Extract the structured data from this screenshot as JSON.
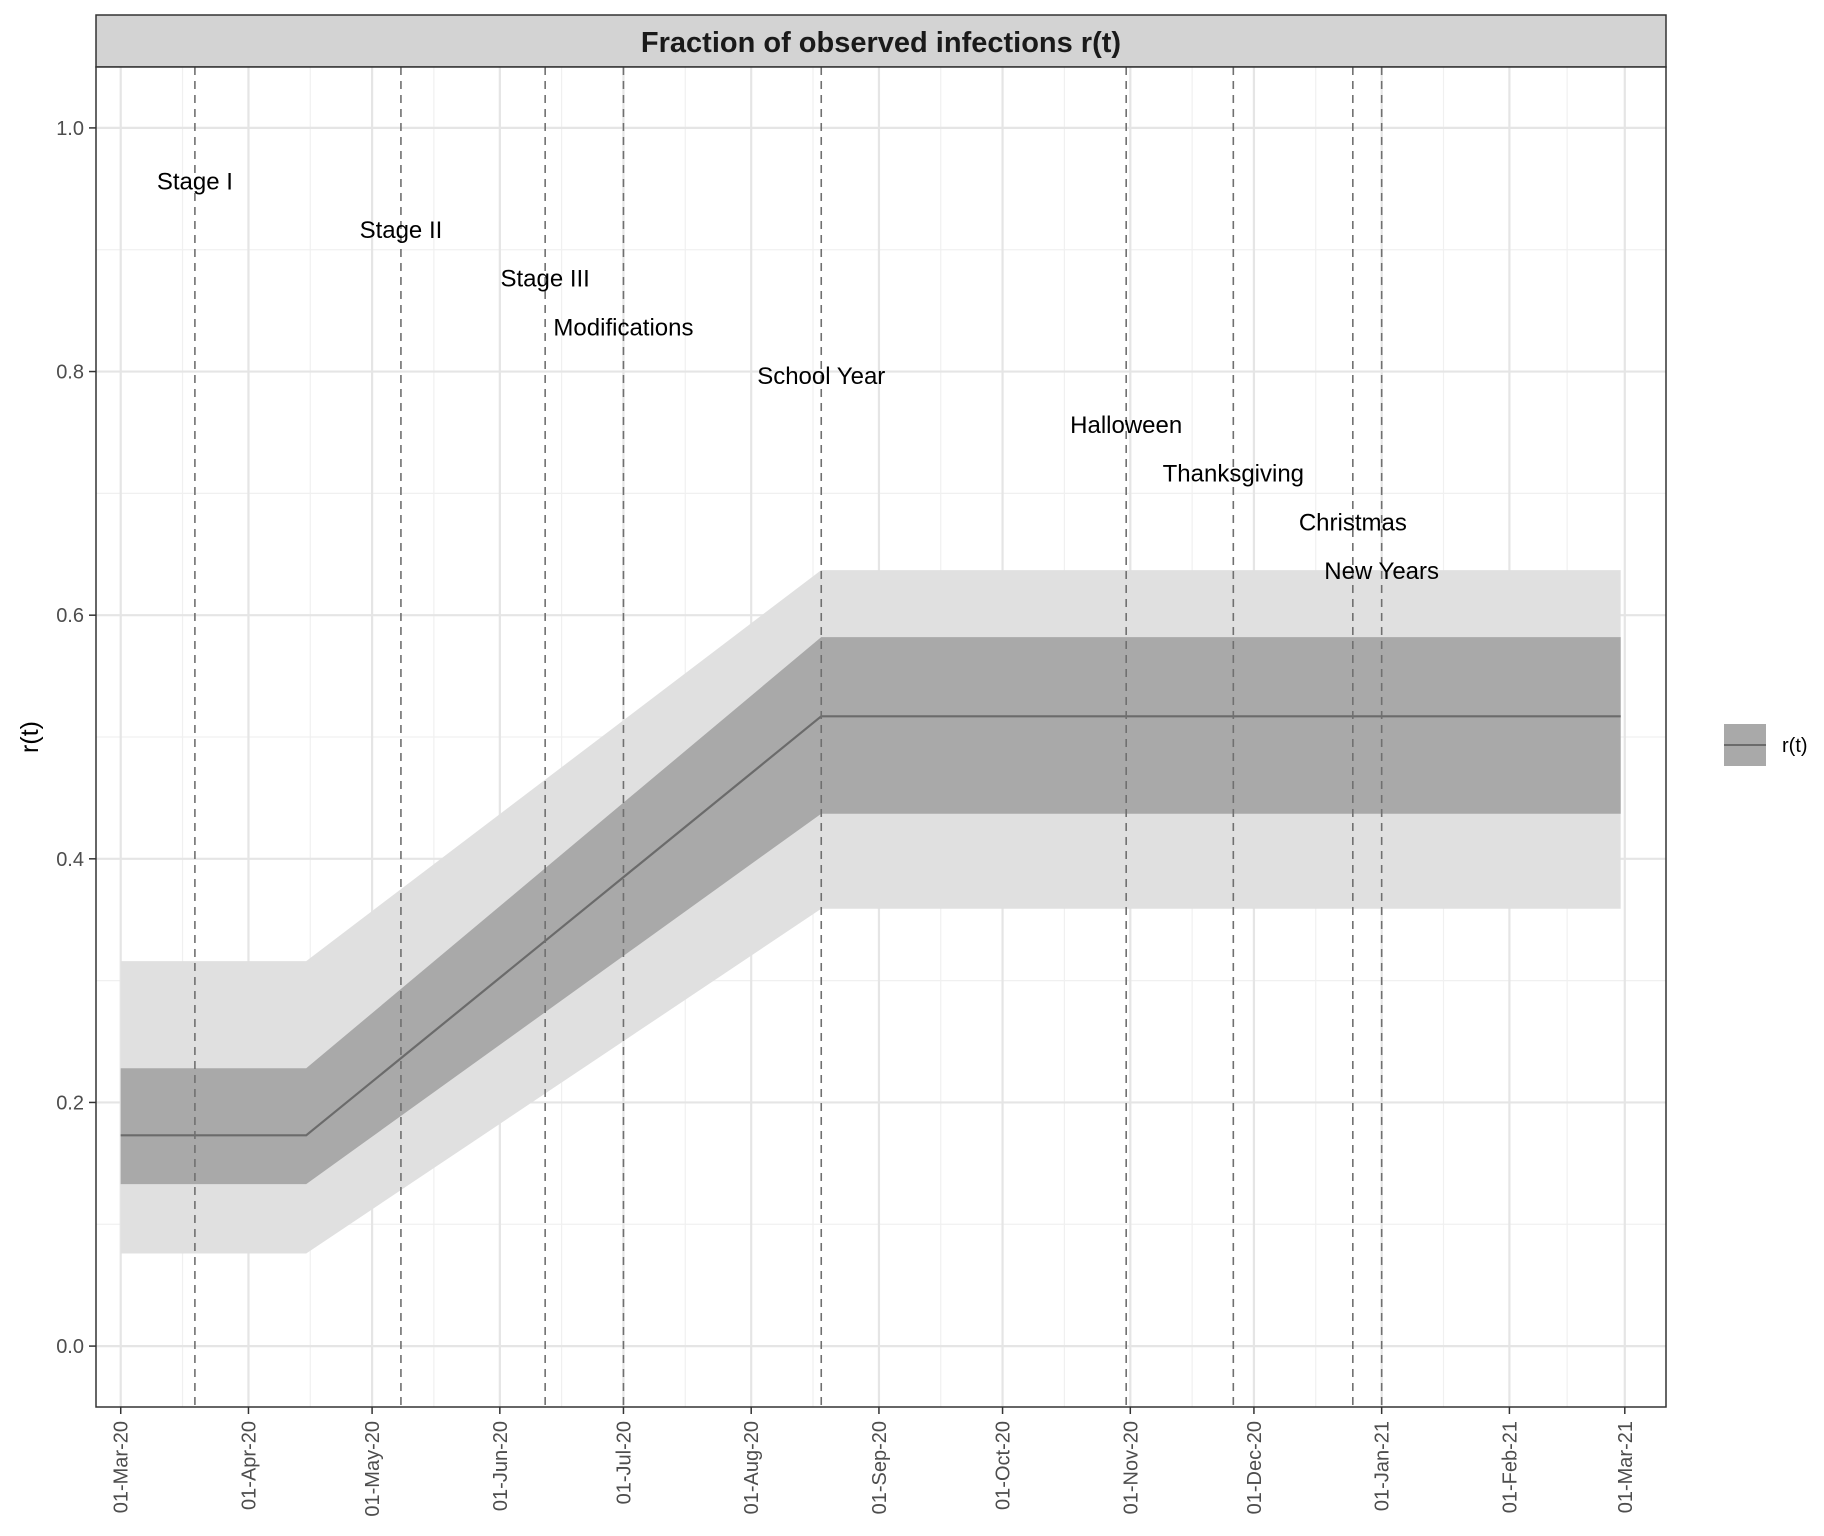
{
  "chart_data": {
    "type": "line",
    "title": "Fraction of observed infections r(t)",
    "xlabel": "",
    "ylabel": "r(t)",
    "x_type": "date",
    "xlim": [
      "2020-02-24",
      "2021-03-11"
    ],
    "ylim": [
      -0.05,
      1.05
    ],
    "x_ticks": [
      {
        "date": "2020-03-01",
        "label": "01-Mar-20"
      },
      {
        "date": "2020-04-01",
        "label": "01-Apr-20"
      },
      {
        "date": "2020-05-01",
        "label": "01-May-20"
      },
      {
        "date": "2020-06-01",
        "label": "01-Jun-20"
      },
      {
        "date": "2020-07-01",
        "label": "01-Jul-20"
      },
      {
        "date": "2020-08-01",
        "label": "01-Aug-20"
      },
      {
        "date": "2020-09-01",
        "label": "01-Sep-20"
      },
      {
        "date": "2020-10-01",
        "label": "01-Oct-20"
      },
      {
        "date": "2020-11-01",
        "label": "01-Nov-20"
      },
      {
        "date": "2020-12-01",
        "label": "01-Dec-20"
      },
      {
        "date": "2021-01-01",
        "label": "01-Jan-21"
      },
      {
        "date": "2021-02-01",
        "label": "01-Feb-21"
      },
      {
        "date": "2021-03-01",
        "label": "01-Mar-21"
      }
    ],
    "y_ticks": [
      {
        "value": 0.0,
        "label": "0.0"
      },
      {
        "value": 0.2,
        "label": "0.2"
      },
      {
        "value": 0.4,
        "label": "0.4"
      },
      {
        "value": 0.6,
        "label": "0.6"
      },
      {
        "value": 0.8,
        "label": "0.8"
      },
      {
        "value": 1.0,
        "label": "1.0"
      }
    ],
    "grid": true,
    "legend_position": "right",
    "series": [
      {
        "name": "r(t)",
        "x": [
          "2020-03-01",
          "2020-04-15",
          "2020-08-18",
          "2021-02-28"
        ],
        "y": [
          0.173,
          0.173,
          0.517,
          0.517
        ],
        "inner_band": {
          "lower": [
            0.133,
            0.133,
            0.437,
            0.437
          ],
          "upper": [
            0.228,
            0.228,
            0.582,
            0.582
          ]
        },
        "outer_band": {
          "lower": [
            0.076,
            0.076,
            0.359,
            0.359
          ],
          "upper": [
            0.316,
            0.316,
            0.637,
            0.637
          ]
        }
      }
    ],
    "events": [
      {
        "label": "Stage I",
        "date": "2020-03-19",
        "label_y": 0.957
      },
      {
        "label": "Stage II",
        "date": "2020-05-08",
        "label_y": 0.917
      },
      {
        "label": "Stage III",
        "date": "2020-06-12",
        "label_y": 0.877
      },
      {
        "label": "Modifications",
        "date": "2020-07-01",
        "label_y": 0.837
      },
      {
        "label": "School Year",
        "date": "2020-08-18",
        "label_y": 0.797
      },
      {
        "label": "Halloween",
        "date": "2020-10-31",
        "label_y": 0.757
      },
      {
        "label": "Thanksgiving",
        "date": "2020-11-26",
        "label_y": 0.717
      },
      {
        "label": "Christmas",
        "date": "2020-12-25",
        "label_y": 0.677
      },
      {
        "label": "New Years",
        "date": "2021-01-01",
        "label_y": 0.637
      }
    ],
    "colors": {
      "line": "#6b6b6b",
      "inner_band": "#a9a9a9",
      "outer_band": "#e0e0e0",
      "event_line": "#707070",
      "strip": "#d3d3d3"
    }
  }
}
